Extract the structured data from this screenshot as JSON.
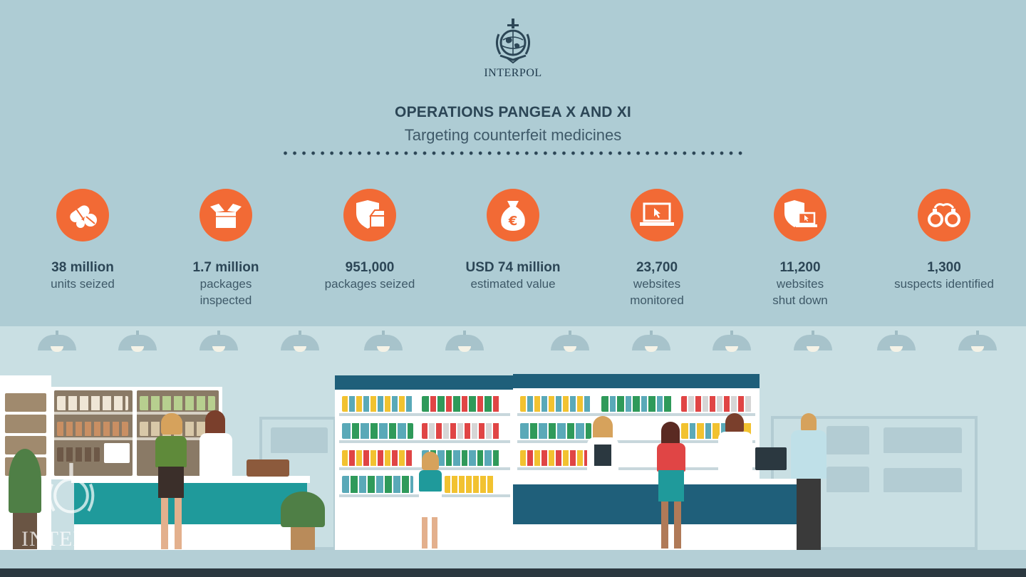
{
  "header": {
    "logo_text": "INTERPOL",
    "title": "OPERATIONS PANGEA X AND XI",
    "subtitle": "Targeting counterfeit medicines"
  },
  "colors": {
    "background": "#aeccd4",
    "accent": "#f26a35",
    "text_dark": "#2c4656"
  },
  "stats": [
    {
      "icon": "pills-icon",
      "value": "38 million",
      "label_lines": [
        "units seized"
      ]
    },
    {
      "icon": "box-icon",
      "value": "1.7 million",
      "label_lines": [
        "packages",
        "inspected"
      ]
    },
    {
      "icon": "shield-box-icon",
      "value": "951,000",
      "label_lines": [
        "packages seized"
      ]
    },
    {
      "icon": "money-bag-icon",
      "value": "USD 74 million",
      "label_lines": [
        "estimated value"
      ]
    },
    {
      "icon": "laptop-icon",
      "value": "23,700",
      "label_lines": [
        "websites",
        "monitored"
      ]
    },
    {
      "icon": "shield-laptop-icon",
      "value": "11,200",
      "label_lines": [
        "websites",
        "shut down"
      ]
    },
    {
      "icon": "handcuffs-icon",
      "value": "1,300",
      "label_lines": [
        "suspects identified"
      ]
    }
  ],
  "watermark": {
    "text": "INTER"
  }
}
